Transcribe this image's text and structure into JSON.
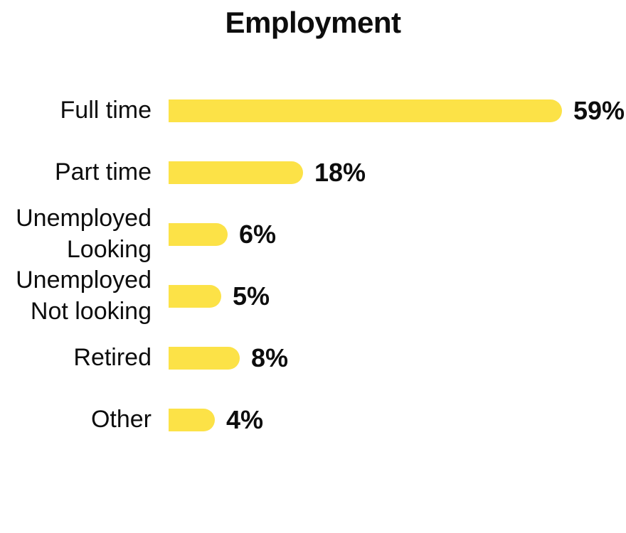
{
  "page": {
    "background_color": "#FFFFFF",
    "text_color": "#0D0D0D"
  },
  "chart_data": {
    "type": "bar",
    "orientation": "horizontal",
    "title": "Employment",
    "categories": [
      "Full time",
      "Part time",
      "Unemployed\nLooking",
      "Unemployed\nNot looking",
      "Retired",
      "Other"
    ],
    "values": [
      59,
      18,
      6,
      5,
      8,
      4
    ],
    "value_labels": [
      "59%",
      "18%",
      "6%",
      "5%",
      "8%",
      "4%"
    ],
    "unit": "%",
    "xlim": [
      0,
      62
    ],
    "grid": false,
    "legend": false,
    "axes_shown": false,
    "bar_color": "#FCE247",
    "bar_cap": "rounded-right"
  }
}
